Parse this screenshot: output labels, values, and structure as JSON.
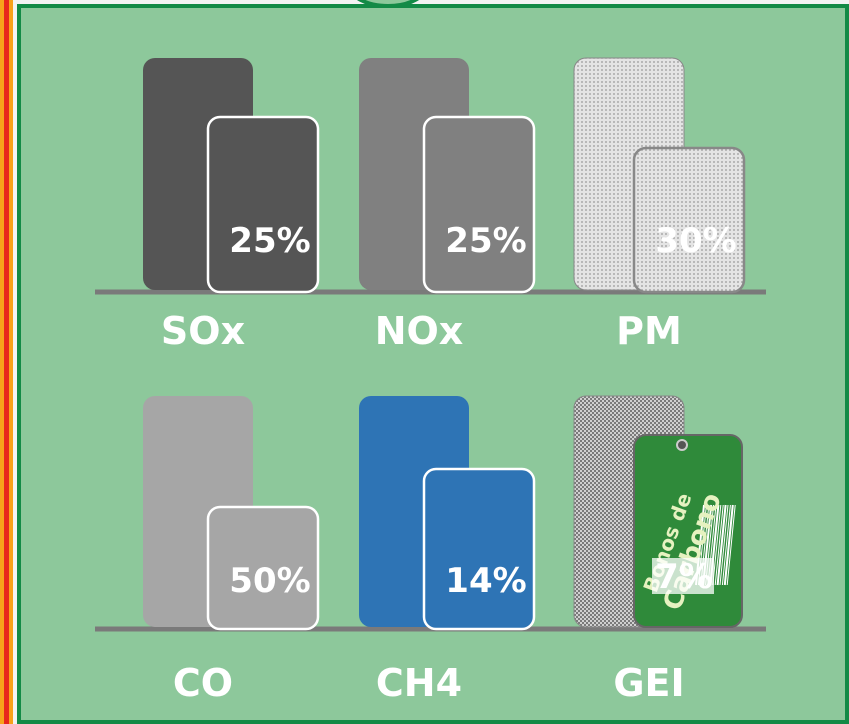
{
  "panels": [
    {
      "label": "SOx",
      "value": "25%"
    },
    {
      "label": "NOx",
      "value": "25%"
    },
    {
      "label": "PM",
      "value": "30%"
    },
    {
      "label": "CO",
      "value": "50%"
    },
    {
      "label": "CH4",
      "value": "14%"
    },
    {
      "label": "GEI",
      "value": "7%"
    }
  ],
  "tag": {
    "line1": "Bonos de",
    "line2": "Carbono"
  }
}
